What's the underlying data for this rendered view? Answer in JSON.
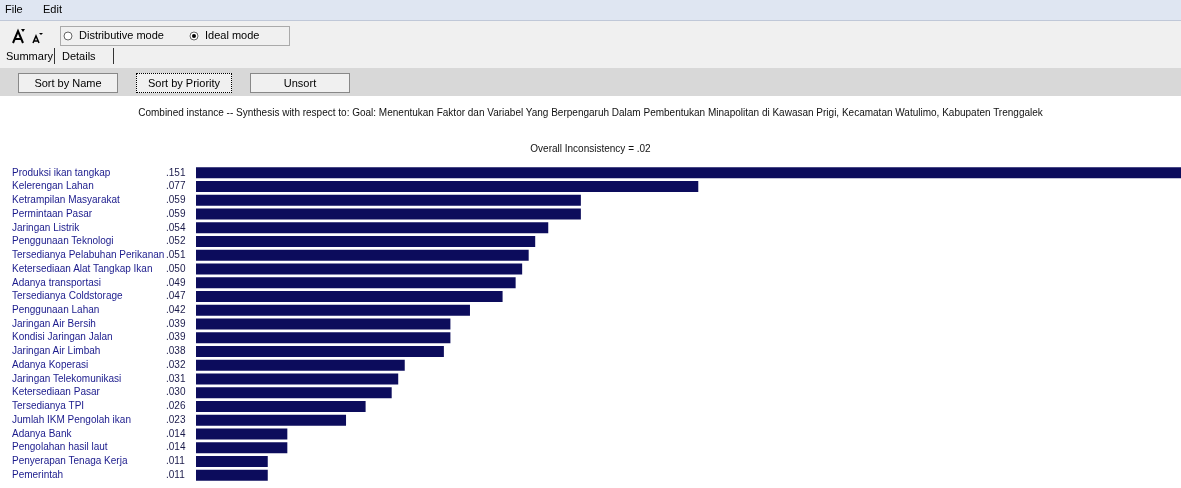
{
  "chart_data": {
    "type": "bar",
    "orientation": "horizontal",
    "title": "Combined instance -- Synthesis with respect to: Goal: Menentukan Faktor dan Variabel Yang Berpengaruh Dalam Pembentukan Minapolitan di Kawasan Prigi, Kecamatan Watulimo, Kabupaten Trenggalek",
    "subtitle": "Overall Inconsistency = .02",
    "categories": [
      "Produksi ikan tangkap",
      "Kelerengan Lahan",
      "Ketrampilan Masyarakat",
      "Permintaan Pasar",
      "Jaringan Listrik",
      "Penggunaan Teknologi",
      "Tersedianya Pelabuhan Perikanan",
      "Ketersediaan Alat Tangkap Ikan",
      "Adanya transportasi",
      "Tersedianya Coldstorage",
      "Penggunaan Lahan",
      "Jaringan Air Bersih",
      "Kondisi Jaringan Jalan",
      "Jaringan Air Limbah",
      "Adanya Koperasi",
      "Jaringan Telekomunikasi",
      "Ketersediaan Pasar",
      "Tersedianya TPI",
      "Jumlah IKM Pengolah ikan",
      "Adanya Bank",
      "Pengolahan hasil laut",
      "Penyerapan Tenaga Kerja",
      "Pemerintah"
    ],
    "values": [
      0.151,
      0.077,
      0.059,
      0.059,
      0.054,
      0.052,
      0.051,
      0.05,
      0.049,
      0.047,
      0.042,
      0.039,
      0.039,
      0.038,
      0.032,
      0.031,
      0.03,
      0.026,
      0.023,
      0.014,
      0.014,
      0.011,
      0.011
    ],
    "value_labels": [
      ".151",
      ".077",
      ".059",
      ".059",
      ".054",
      ".052",
      ".051",
      ".050",
      ".049",
      ".047",
      ".042",
      ".039",
      ".039",
      ".038",
      ".032",
      ".031",
      ".030",
      ".026",
      ".023",
      ".014",
      ".014",
      ".011",
      ".011"
    ],
    "color": "#0c0c5c",
    "legend": false,
    "annotations": [
      "File",
      "Edit",
      "Distributive mode",
      "Ideal mode",
      "Summary",
      "Details",
      "Sort by Name",
      "Sort by Priority",
      "Unsort"
    ]
  }
}
